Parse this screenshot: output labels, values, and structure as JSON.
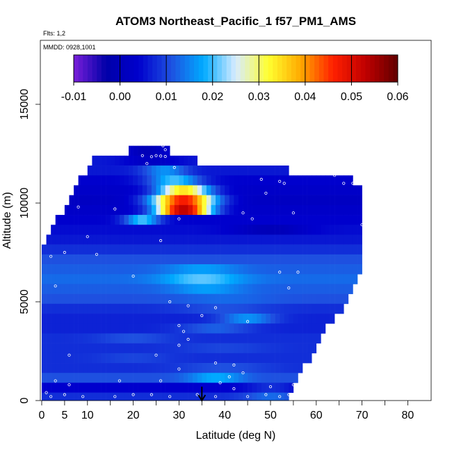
{
  "chart_data": {
    "type": "heatmap",
    "title": "ATOM3 Northeast_Pacific_1 f57_PM1_AMS",
    "subtitle_flights": "Flts: 1,2",
    "subtitle_dates": "MMDD: 0928,1001",
    "xlabel": "Latitude (deg N)",
    "ylabel": "Altitude (m)",
    "xlim": [
      0,
      84
    ],
    "ylim": [
      0,
      18000
    ],
    "x_ticks": [
      0,
      5,
      10,
      20,
      30,
      40,
      50,
      60,
      70,
      80
    ],
    "y_ticks": [
      0,
      5000,
      10000,
      15000
    ],
    "x_tick_labels": [
      "0",
      "5",
      "10",
      "20",
      "30",
      "40",
      "50",
      "60",
      "70",
      "80"
    ],
    "y_tick_labels": [
      "0",
      "5000",
      "10000",
      "15000"
    ],
    "colorbar": {
      "range": [
        -0.01,
        0.06
      ],
      "ticks": [
        -0.01,
        0.0,
        0.01,
        0.02,
        0.03,
        0.04,
        0.05,
        0.06
      ],
      "tick_labels": [
        "-0.01",
        "0.00",
        "0.01",
        "0.02",
        "0.03",
        "0.04",
        "0.05",
        "0.06"
      ],
      "colors": [
        "#7a1fd9",
        "#0000a8",
        "#0000cd",
        "#1e50e0",
        "#00aaff",
        "#d8ecff",
        "#ffff30",
        "#ffaa00",
        "#ff2000",
        "#c00000",
        "#600000"
      ]
    },
    "marker_latitude": 35,
    "profile_rows": [
      {
        "alt_top": 12900,
        "alt_bot": 12400,
        "lat_min": 19,
        "lat_max": 28,
        "base": 0.005,
        "peak": 0.0,
        "peak_lat": 23,
        "width": 4
      },
      {
        "alt_top": 12400,
        "alt_bot": 11900,
        "lat_min": 11,
        "lat_max": 34,
        "base": 0.006,
        "peak": 0.002,
        "peak_lat": 24,
        "width": 6
      },
      {
        "alt_top": 11900,
        "alt_bot": 11400,
        "lat_min": 10,
        "lat_max": 54,
        "base": 0.006,
        "peak": 0.016,
        "peak_lat": 27,
        "width": 5
      },
      {
        "alt_top": 11400,
        "alt_bot": 10900,
        "lat_min": 8,
        "lat_max": 68,
        "base": 0.004,
        "peak": 0.02,
        "peak_lat": 29,
        "width": 6
      },
      {
        "alt_top": 10900,
        "alt_bot": 10400,
        "lat_min": 7,
        "lat_max": 70,
        "base": 0.003,
        "peak": 0.034,
        "peak_lat": 31,
        "width": 6
      },
      {
        "alt_top": 10400,
        "alt_bot": 9900,
        "lat_min": 6,
        "lat_max": 70,
        "base": 0.002,
        "peak": 0.047,
        "peak_lat": 31,
        "width": 7
      },
      {
        "alt_top": 9900,
        "alt_bot": 9400,
        "lat_min": 5,
        "lat_max": 70,
        "base": 0.003,
        "peak": 0.053,
        "peak_lat": 31,
        "width": 6
      },
      {
        "alt_top": 9400,
        "alt_bot": 8900,
        "lat_min": 3,
        "lat_max": 70,
        "base": 0.004,
        "peak": 0.02,
        "peak_lat": 22,
        "width": 4
      },
      {
        "alt_top": 8900,
        "alt_bot": 8400,
        "lat_min": 2,
        "lat_max": 70,
        "base": 0.005,
        "peak": 0.0,
        "peak_lat": 50,
        "width": 8
      },
      {
        "alt_top": 8400,
        "alt_bot": 7900,
        "lat_min": 1,
        "lat_max": 70,
        "base": 0.006,
        "peak": 0.006,
        "peak_lat": 30,
        "width": 10
      },
      {
        "alt_top": 7900,
        "alt_bot": 7400,
        "lat_min": 0,
        "lat_max": 70,
        "base": 0.008,
        "peak": 0.008,
        "peak_lat": 30,
        "width": 10
      },
      {
        "alt_top": 7400,
        "alt_bot": 6900,
        "lat_min": 0,
        "lat_max": 70,
        "base": 0.011,
        "peak": 0.011,
        "peak_lat": 30,
        "width": 10
      },
      {
        "alt_top": 6900,
        "alt_bot": 6400,
        "lat_min": 0,
        "lat_max": 70,
        "base": 0.012,
        "peak": 0.017,
        "peak_lat": 35,
        "width": 8
      },
      {
        "alt_top": 6400,
        "alt_bot": 5900,
        "lat_min": 0,
        "lat_max": 69,
        "base": 0.013,
        "peak": 0.021,
        "peak_lat": 35,
        "width": 9
      },
      {
        "alt_top": 5900,
        "alt_bot": 5400,
        "lat_min": 0,
        "lat_max": 68,
        "base": 0.012,
        "peak": 0.017,
        "peak_lat": 36,
        "width": 8
      },
      {
        "alt_top": 5400,
        "alt_bot": 4900,
        "lat_min": 0,
        "lat_max": 67,
        "base": 0.011,
        "peak": 0.013,
        "peak_lat": 40,
        "width": 10
      },
      {
        "alt_top": 4900,
        "alt_bot": 4400,
        "lat_min": 0,
        "lat_max": 66,
        "base": 0.008,
        "peak": 0.011,
        "peak_lat": 40,
        "width": 10
      },
      {
        "alt_top": 4400,
        "alt_bot": 3900,
        "lat_min": 0,
        "lat_max": 64,
        "base": 0.007,
        "peak": 0.016,
        "peak_lat": 45,
        "width": 6
      },
      {
        "alt_top": 3900,
        "alt_bot": 3400,
        "lat_min": 0,
        "lat_max": 62,
        "base": 0.007,
        "peak": 0.012,
        "peak_lat": 38,
        "width": 8
      },
      {
        "alt_top": 3400,
        "alt_bot": 2900,
        "lat_min": 0,
        "lat_max": 61,
        "base": 0.008,
        "peak": 0.011,
        "peak_lat": 20,
        "width": 8
      },
      {
        "alt_top": 2900,
        "alt_bot": 2400,
        "lat_min": 0,
        "lat_max": 60,
        "base": 0.008,
        "peak": 0.01,
        "peak_lat": 40,
        "width": 10
      },
      {
        "alt_top": 2400,
        "alt_bot": 1900,
        "lat_min": 0,
        "lat_max": 59,
        "base": 0.008,
        "peak": 0.01,
        "peak_lat": 20,
        "width": 8
      },
      {
        "alt_top": 1900,
        "alt_bot": 1400,
        "lat_min": 0,
        "lat_max": 57,
        "base": 0.008,
        "peak": 0.011,
        "peak_lat": 40,
        "width": 10
      },
      {
        "alt_top": 1400,
        "alt_bot": 900,
        "lat_min": 0,
        "lat_max": 56,
        "base": 0.011,
        "peak": 0.018,
        "peak_lat": 38,
        "width": 6
      },
      {
        "alt_top": 900,
        "alt_bot": 400,
        "lat_min": 0,
        "lat_max": 55,
        "base": 0.004,
        "peak": 0.008,
        "peak_lat": 50,
        "width": 5
      },
      {
        "alt_top": 400,
        "alt_bot": 0,
        "lat_min": 0,
        "lat_max": 54,
        "base": 0.008,
        "peak": 0.013,
        "peak_lat": 50,
        "width": 6
      }
    ],
    "sample_points": [
      [
        26.5,
        12900
      ],
      [
        27,
        12700
      ],
      [
        22,
        12400
      ],
      [
        24,
        12350
      ],
      [
        25,
        12400
      ],
      [
        26,
        12380
      ],
      [
        27,
        12360
      ],
      [
        23,
        12000
      ],
      [
        29,
        11800
      ],
      [
        48,
        11200
      ],
      [
        52,
        11100
      ],
      [
        53,
        11000
      ],
      [
        64,
        11400
      ],
      [
        66,
        11000
      ],
      [
        68,
        11000
      ],
      [
        49,
        10500
      ],
      [
        3,
        10000
      ],
      [
        8,
        9800
      ],
      [
        16,
        9700
      ],
      [
        30,
        9200
      ],
      [
        44,
        9500
      ],
      [
        46,
        9200
      ],
      [
        55,
        9500
      ],
      [
        70,
        8900
      ],
      [
        1,
        8600
      ],
      [
        10,
        8300
      ],
      [
        26,
        8100
      ],
      [
        5,
        7500
      ],
      [
        12,
        7400
      ],
      [
        2,
        7300
      ],
      [
        3,
        5800
      ],
      [
        20,
        6300
      ],
      [
        52,
        6500
      ],
      [
        56,
        6500
      ],
      [
        54,
        5700
      ],
      [
        70,
        6300
      ],
      [
        28,
        5000
      ],
      [
        32,
        4800
      ],
      [
        35,
        4300
      ],
      [
        38,
        4700
      ],
      [
        45,
        4000
      ],
      [
        30,
        3800
      ],
      [
        31,
        3500
      ],
      [
        32,
        3100
      ],
      [
        30,
        2800
      ],
      [
        25,
        2300
      ],
      [
        6,
        2300
      ],
      [
        38,
        1900
      ],
      [
        42,
        1800
      ],
      [
        30,
        1600
      ],
      [
        44,
        1400
      ],
      [
        3,
        1000
      ],
      [
        6,
        800
      ],
      [
        17,
        1000
      ],
      [
        26,
        1000
      ],
      [
        41,
        1200
      ],
      [
        39,
        900
      ],
      [
        42,
        600
      ],
      [
        50,
        700
      ],
      [
        55,
        800
      ],
      [
        1,
        400
      ],
      [
        2,
        200
      ],
      [
        5,
        300
      ],
      [
        9,
        200
      ],
      [
        16,
        200
      ],
      [
        20,
        300
      ],
      [
        24,
        300
      ],
      [
        28,
        200
      ],
      [
        34,
        300
      ],
      [
        38,
        200
      ],
      [
        45,
        200
      ],
      [
        49,
        300
      ],
      [
        52,
        200
      ],
      [
        54,
        300
      ]
    ]
  }
}
